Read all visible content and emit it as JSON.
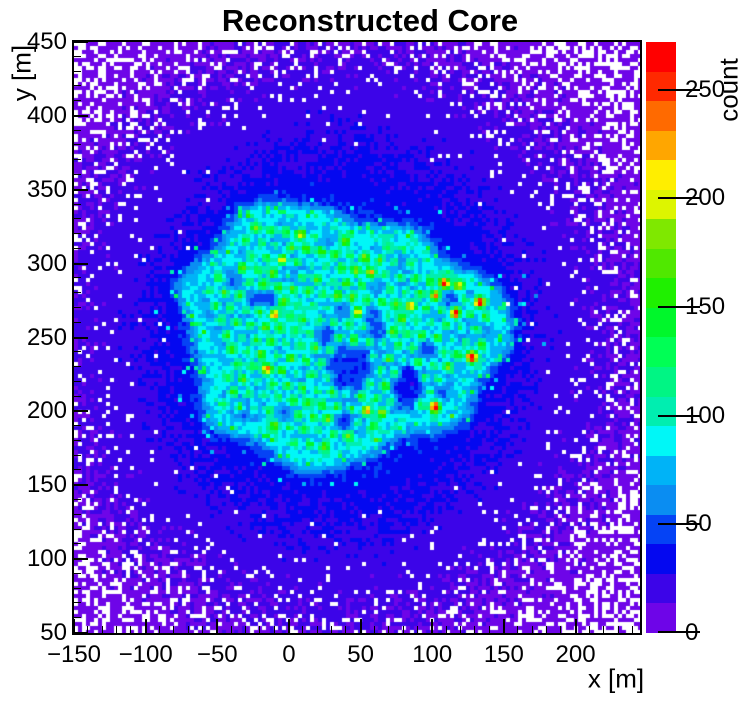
{
  "chart_data": {
    "type": "heatmap",
    "title": "Reconstructed Core",
    "xlabel": "x [m]",
    "ylabel": "y [m]",
    "zlabel": "count",
    "xlim": [
      -150,
      245
    ],
    "ylim": [
      50,
      450
    ],
    "zlim": [
      0,
      272
    ],
    "x_ticks": [
      -150,
      -100,
      -50,
      0,
      50,
      100,
      150,
      200
    ],
    "y_ticks": [
      50,
      100,
      150,
      200,
      250,
      300,
      350,
      400,
      450
    ],
    "z_ticks": [
      0,
      50,
      100,
      150,
      200,
      250
    ],
    "minor_tick_step": 10,
    "grid": false,
    "colorbar_position": "right",
    "n_color_levels": 20,
    "palette_bottom_to_top": [
      "#6e05e8",
      "#3c04e8",
      "#0408f0",
      "#0543f5",
      "#0a8df2",
      "#00b3f7",
      "#00f7f7",
      "#00eeb0",
      "#00f584",
      "#00ff55",
      "#00f72b",
      "#1ff000",
      "#50e800",
      "#7fe800",
      "#ddf500",
      "#ffee00",
      "#ffa600",
      "#ff6a00",
      "#ff2900",
      "#ff0000"
    ],
    "empty_bin_color": "#ffffff",
    "bin_size_px": 4,
    "description": "2D histogram of reconstructed shower core positions: low-count violet/blue halo with empty (white) bins toward the edges, a bright cyan-rimmed irregular footprint of a detector array centered near (35 m, 250 m) containing a hexagonal lattice of cyan/green hotspot dots (a few orange/red on the right side) and a darker low-count hole right of center.",
    "distribution": {
      "seed": 1337,
      "center": {
        "x": 35,
        "y": 250
      },
      "glow": {
        "floor": 4,
        "amp": 44,
        "sigma": 160
      },
      "blob": {
        "cx": 33,
        "cy": 252,
        "scale_x": 1.14,
        "scale_y": 0.93,
        "base_r": 87,
        "harmonics": [
          [
            3,
            8,
            1.3
          ],
          [
            7,
            5,
            0.4
          ],
          [
            2,
            4,
            2.2
          ],
          [
            11,
            2.5,
            3.0
          ]
        ]
      },
      "interior_boost": 12,
      "rim": {
        "amp": 52,
        "width2": 90
      },
      "fuzz": {
        "prob": 0.17,
        "decay": 11,
        "max_s": 28,
        "amp_min": 28,
        "amp_range": 45
      },
      "mottle": [
        [
          0.08,
          1.1,
          0.1,
          0.4,
          9
        ],
        [
          0.16,
          4.2,
          0.06,
          2.1,
          7
        ]
      ],
      "holes": [
        {
          "x": 45,
          "y": 233,
          "amp": 26,
          "sigma": 15
        },
        {
          "x": 85,
          "y": 215,
          "amp": 16,
          "sigma": 12
        }
      ],
      "lattice": {
        "spacing": 10.4,
        "row_step": 9.3,
        "rotation_deg": -8,
        "dot_sigma": 2.7,
        "amp_min": 55,
        "amp_range": 75,
        "missing_prob": 0.05,
        "hot_prob": 0.03,
        "right_hot_x": 70,
        "right_hot_prob": 0.1,
        "hot_amp_min": 150,
        "hot_amp_range": 70,
        "very_hot_x": 100,
        "very_hot_prob": 0.1,
        "very_hot_amp_min": 215,
        "very_hot_amp_range": 55,
        "edge_margin": 7
      },
      "noise": {
        "poisson_scale": 2.4,
        "flat": 3
      },
      "zero_bins": {
        "start": 140,
        "range": 230,
        "power": 1.3,
        "max": 0.95,
        "sparse": 0.015,
        "sparse_from": 120
      }
    }
  }
}
